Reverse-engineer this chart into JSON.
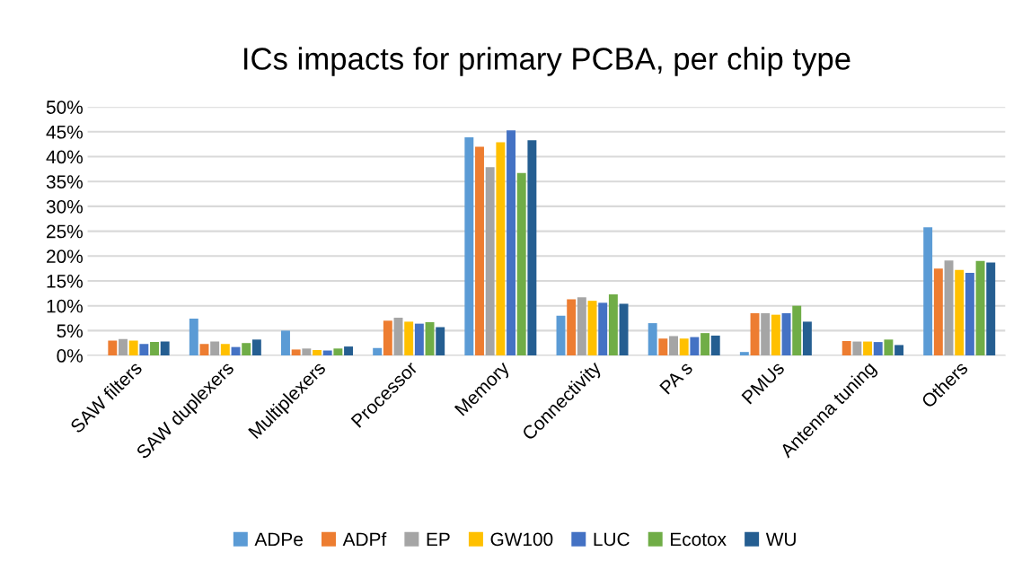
{
  "chart_data": {
    "type": "bar",
    "title": "ICs impacts for primary PCBA, per chip type",
    "categories": [
      "SAW filters",
      "SAW duplexers",
      "Multiplexers",
      "Processor",
      "Memory",
      "Connectivity",
      "PA s",
      "PMUs",
      "Antenna tuning",
      "Others"
    ],
    "series": [
      {
        "name": "ADPe",
        "color": "#5b9bd5",
        "values": [
          0,
          7.4,
          5.0,
          1.5,
          43.9,
          8.0,
          6.5,
          0.7,
          0,
          25.8
        ]
      },
      {
        "name": "ADPf",
        "color": "#ed7d31",
        "values": [
          3.0,
          2.3,
          1.2,
          7.0,
          42.0,
          11.3,
          3.4,
          8.5,
          2.9,
          17.5
        ]
      },
      {
        "name": "EP",
        "color": "#a5a5a5",
        "values": [
          3.3,
          2.8,
          1.4,
          7.6,
          37.9,
          11.7,
          3.9,
          8.5,
          2.8,
          19.1
        ]
      },
      {
        "name": "GW100",
        "color": "#ffc000",
        "values": [
          3.0,
          2.3,
          1.1,
          6.8,
          42.9,
          11.0,
          3.4,
          8.2,
          2.8,
          17.2
        ]
      },
      {
        "name": "LUC",
        "color": "#4472c4",
        "values": [
          2.3,
          1.7,
          1.0,
          6.4,
          45.3,
          10.6,
          3.7,
          8.5,
          2.7,
          16.6
        ]
      },
      {
        "name": "Ecotox",
        "color": "#70ad47",
        "values": [
          2.7,
          2.5,
          1.4,
          6.7,
          36.7,
          12.3,
          4.5,
          10.0,
          3.2,
          19.0
        ]
      },
      {
        "name": "WU",
        "color": "#255e91",
        "values": [
          2.8,
          3.2,
          1.8,
          5.7,
          43.3,
          10.4,
          4.0,
          6.8,
          2.1,
          18.7
        ]
      }
    ],
    "ylim": [
      0,
      50
    ],
    "yticks": [
      {
        "value": 0,
        "label": "0%"
      },
      {
        "value": 5,
        "label": "5%"
      },
      {
        "value": 10,
        "label": "10%"
      },
      {
        "value": 15,
        "label": "15%"
      },
      {
        "value": 20,
        "label": "20%"
      },
      {
        "value": 25,
        "label": "25%"
      },
      {
        "value": 30,
        "label": "30%"
      },
      {
        "value": 35,
        "label": "35%"
      },
      {
        "value": 40,
        "label": "40%"
      },
      {
        "value": 45,
        "label": "45%"
      },
      {
        "value": 50,
        "label": "50%"
      }
    ],
    "grid": "y",
    "legend": "bottom"
  }
}
